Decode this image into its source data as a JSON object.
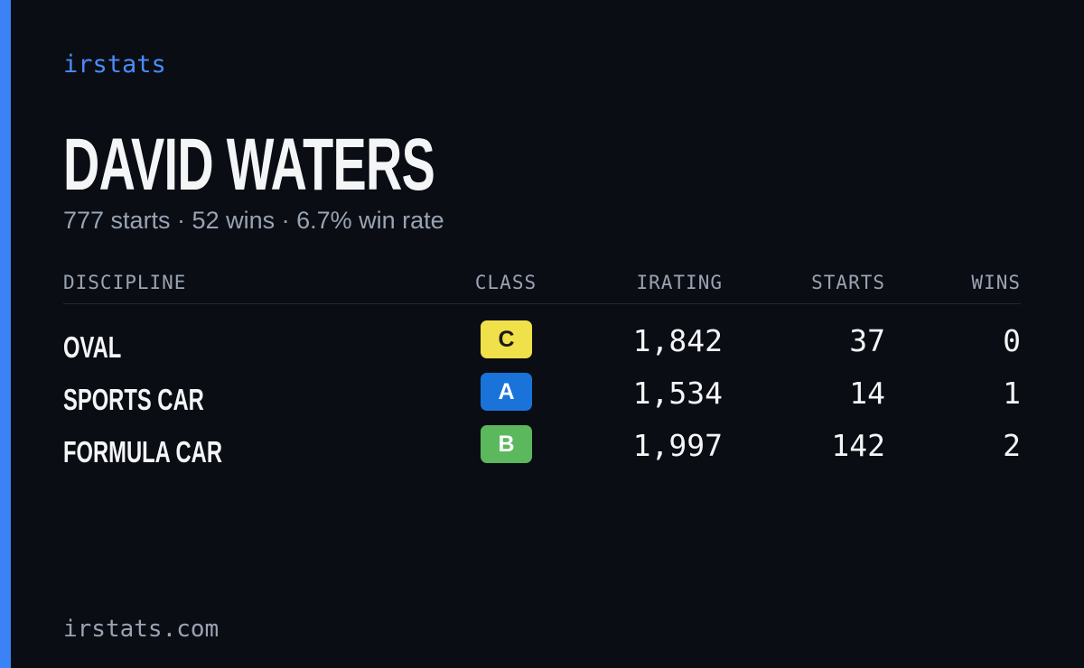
{
  "brand": "irstats",
  "driver": {
    "name": "DAVID WATERS",
    "summary": "777 starts · 52 wins · 6.7% win rate"
  },
  "table": {
    "headers": [
      "DISCIPLINE",
      "CLASS",
      "IRATING",
      "STARTS",
      "WINS"
    ],
    "rows": [
      {
        "discipline": "OVAL",
        "class": "C",
        "class_color": "#f0e04a",
        "class_text_color": "#1a1a1a",
        "irating": "1,842",
        "starts": "37",
        "wins": "0"
      },
      {
        "discipline": "SPORTS CAR",
        "class": "A",
        "class_color": "#1a73d9",
        "class_text_color": "#ffffff",
        "irating": "1,534",
        "starts": "14",
        "wins": "1"
      },
      {
        "discipline": "FORMULA CAR",
        "class": "B",
        "class_color": "#5cb85c",
        "class_text_color": "#ffffff",
        "irating": "1,997",
        "starts": "142",
        "wins": "2"
      }
    ]
  },
  "footer": "irstats.com"
}
